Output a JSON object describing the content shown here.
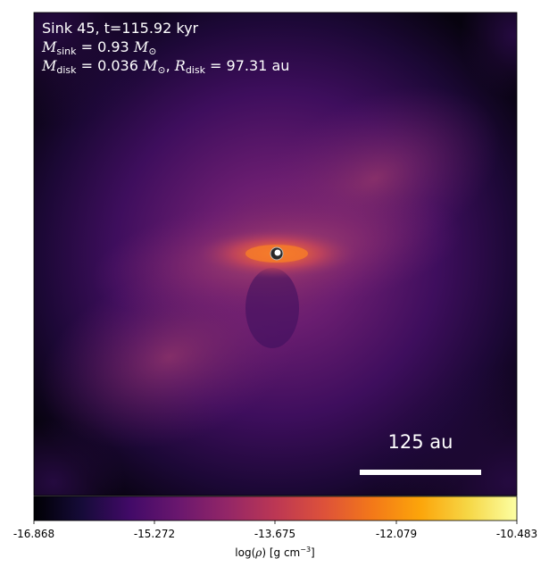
{
  "annotations": {
    "line1": "Sink 45, t=115.92 kyr",
    "msink_symbol": "M",
    "msink_sub": "sink",
    "msink_value": " = 0.93 ",
    "msink_unit_symbol": "M",
    "msink_unit_sub": "⊙",
    "mdisk_symbol": "M",
    "mdisk_sub": "disk",
    "mdisk_value": " = 0.036 ",
    "mdisk_unit_symbol": "M",
    "mdisk_unit_sub": "⊙",
    "rdisk_sep": ", ",
    "rdisk_symbol": "R",
    "rdisk_sub": "disk",
    "rdisk_value": " = 97.31 au"
  },
  "scalebar": {
    "label": "125 au"
  },
  "colorbar": {
    "colormap": "inferno-like",
    "vmin": -16.868,
    "vmax": -10.483,
    "ticks": [
      "-16.868",
      "-15.272",
      "-13.675",
      "-12.079",
      "-10.483"
    ],
    "label_prefix": "log(",
    "label_rho": "ρ",
    "label_mid": ") [g cm",
    "label_exp": "−3",
    "label_suffix": "]"
  },
  "colors": {
    "background": "#000004",
    "disk_core": "#e8743a",
    "sink": "#ffffff"
  }
}
